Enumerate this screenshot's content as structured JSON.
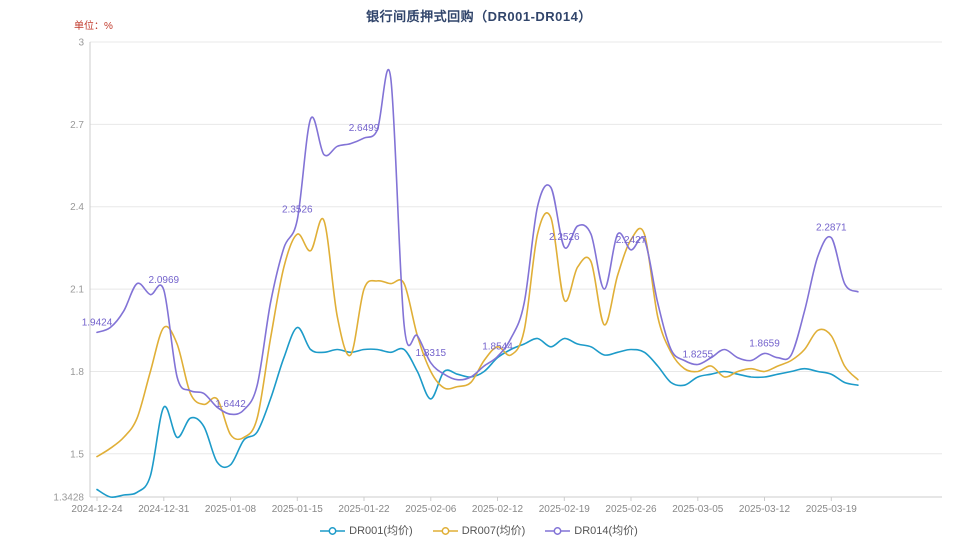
{
  "chart_data": {
    "type": "line",
    "title": "银行间质押式回购（DR001-DR014）",
    "unit": "单位：%",
    "ylim": [
      1.3428,
      3
    ],
    "y_ticks": [
      1.3428,
      1.5,
      1.8,
      2.1,
      2.4,
      2.7,
      3
    ],
    "grid": true,
    "legend_position": "bottom",
    "x": [
      "2024-12-24",
      "2024-12-25",
      "2024-12-26",
      "2024-12-27",
      "2024-12-30",
      "2024-12-31",
      "2025-01-02",
      "2025-01-03",
      "2025-01-06",
      "2025-01-07",
      "2025-01-08",
      "2025-01-09",
      "2025-01-10",
      "2025-01-13",
      "2025-01-14",
      "2025-01-15",
      "2025-01-16",
      "2025-01-17",
      "2025-01-20",
      "2025-01-21",
      "2025-01-22",
      "2025-01-23",
      "2025-01-24",
      "2025-01-27",
      "2025-02-05",
      "2025-02-06",
      "2025-02-07",
      "2025-02-08",
      "2025-02-10",
      "2025-02-11",
      "2025-02-12",
      "2025-02-13",
      "2025-02-14",
      "2025-02-17",
      "2025-02-18",
      "2025-02-19",
      "2025-02-20",
      "2025-02-21",
      "2025-02-24",
      "2025-02-25",
      "2025-02-26",
      "2025-02-27",
      "2025-02-28",
      "2025-03-03",
      "2025-03-04",
      "2025-03-05",
      "2025-03-06",
      "2025-03-07",
      "2025-03-10",
      "2025-03-11",
      "2025-03-12",
      "2025-03-13",
      "2025-03-14",
      "2025-03-17",
      "2025-03-18",
      "2025-03-19",
      "2025-03-20",
      "2025-03-21"
    ],
    "x_tick_indices": [
      0,
      5,
      10,
      15,
      20,
      25,
      30,
      35,
      40,
      45,
      50,
      55
    ],
    "series": [
      {
        "name": "DR001(均价)",
        "color": "#1d9bc9",
        "values": [
          1.37,
          1.3428,
          1.35,
          1.36,
          1.42,
          1.67,
          1.56,
          1.63,
          1.6,
          1.47,
          1.46,
          1.55,
          1.58,
          1.7,
          1.85,
          1.96,
          1.88,
          1.87,
          1.88,
          1.87,
          1.88,
          1.88,
          1.87,
          1.88,
          1.8,
          1.7,
          1.8,
          1.79,
          1.78,
          1.8,
          1.85,
          1.88,
          1.9,
          1.92,
          1.89,
          1.92,
          1.9,
          1.89,
          1.86,
          1.87,
          1.88,
          1.87,
          1.82,
          1.76,
          1.75,
          1.78,
          1.79,
          1.8,
          1.79,
          1.78,
          1.78,
          1.79,
          1.8,
          1.81,
          1.8,
          1.79,
          1.76,
          1.75
        ]
      },
      {
        "name": "DR007(均价)",
        "color": "#e0af37",
        "values": [
          1.49,
          1.52,
          1.56,
          1.63,
          1.8,
          1.96,
          1.9,
          1.72,
          1.68,
          1.7,
          1.57,
          1.56,
          1.63,
          1.92,
          2.18,
          2.3,
          2.24,
          2.35,
          2.0,
          1.86,
          2.1,
          2.13,
          2.12,
          2.12,
          1.93,
          1.8,
          1.74,
          1.745,
          1.76,
          1.84,
          1.89,
          1.86,
          1.95,
          2.3,
          2.36,
          2.06,
          2.18,
          2.2,
          1.97,
          2.15,
          2.28,
          2.3,
          2.0,
          1.87,
          1.81,
          1.8,
          1.82,
          1.78,
          1.8,
          1.81,
          1.8,
          1.82,
          1.84,
          1.88,
          1.95,
          1.93,
          1.82,
          1.77
        ]
      },
      {
        "name": "DR014(均价)",
        "color": "#8273d6",
        "values": [
          1.9424,
          1.96,
          2.02,
          2.12,
          2.08,
          2.0969,
          1.78,
          1.73,
          1.72,
          1.67,
          1.6442,
          1.66,
          1.75,
          2.05,
          2.25,
          2.3526,
          2.72,
          2.59,
          2.62,
          2.63,
          2.6499,
          2.68,
          2.87,
          1.97,
          1.93,
          1.8315,
          1.79,
          1.77,
          1.78,
          1.82,
          1.8544,
          1.92,
          2.05,
          2.4,
          2.47,
          2.2526,
          2.33,
          2.3,
          2.1,
          2.3,
          2.2427,
          2.28,
          2.05,
          1.88,
          1.84,
          1.8255,
          1.85,
          1.88,
          1.85,
          1.84,
          1.8659,
          1.85,
          1.86,
          2.02,
          2.22,
          2.2871,
          2.12,
          2.09
        ]
      }
    ],
    "annotation_color": "#7463cc",
    "annotations": [
      {
        "index": 0,
        "text": "1.9424"
      },
      {
        "index": 5,
        "text": "2.0969"
      },
      {
        "index": 10,
        "text": "1.6442"
      },
      {
        "index": 15,
        "text": "2.3526"
      },
      {
        "index": 20,
        "text": "2.6499"
      },
      {
        "index": 25,
        "text": "1.8315"
      },
      {
        "index": 30,
        "text": "1.8544"
      },
      {
        "index": 35,
        "text": "2.2526"
      },
      {
        "index": 40,
        "text": "2.2427"
      },
      {
        "index": 45,
        "text": "1.8255"
      },
      {
        "index": 50,
        "text": "1.8659"
      },
      {
        "index": 55,
        "text": "2.2871"
      }
    ]
  }
}
